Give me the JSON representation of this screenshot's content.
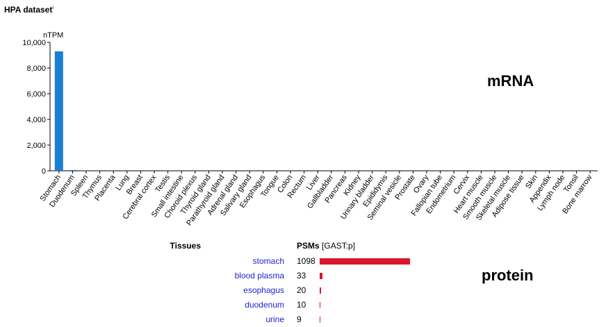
{
  "title": "HPA dataset",
  "title_superscript": "i",
  "chart_data": {
    "type": "bar",
    "ylabel": "nTPM",
    "ylim": [
      0,
      10000
    ],
    "yticks": [
      "0",
      "2,000",
      "4,000",
      "6,000",
      "8,000",
      "10,000"
    ],
    "ytick_values": [
      0,
      2000,
      4000,
      6000,
      8000,
      10000
    ],
    "categories": [
      "Stomach",
      "Duodenum",
      "Spleen",
      "Thymus",
      "Placenta",
      "Lung",
      "Breast",
      "Cerebral cortex",
      "Testis",
      "Small intestine",
      "Choroid plexus",
      "Thyroid gland",
      "Parathyroid gland",
      "Adrenal gland",
      "Salivary gland",
      "Esophagus",
      "Tongue",
      "Colon",
      "Rectum",
      "Liver",
      "Gallbladder",
      "Pancreas",
      "Kidney",
      "Urinary bladder",
      "Epididymis",
      "Seminal vesicle",
      "Prostate",
      "Ovary",
      "Fallopian tube",
      "Endometrium",
      "Cervix",
      "Heart muscle",
      "Smooth muscle",
      "Skeletal muscle",
      "Adipose tissue",
      "Skin",
      "Appendix",
      "Lymph node",
      "Tonsil",
      "Bone marrow"
    ],
    "values": [
      9300,
      60,
      0,
      0,
      0,
      0,
      0,
      0,
      0,
      0,
      0,
      0,
      0,
      0,
      0,
      0,
      0,
      0,
      0,
      0,
      0,
      0,
      0,
      0,
      0,
      0,
      0,
      0,
      0,
      0,
      0,
      0,
      0,
      0,
      0,
      0,
      0,
      0,
      0,
      0
    ],
    "bar_color": "#1a7fd4",
    "grid": false
  },
  "mrna_label": "mRNA",
  "protein_label": "protein",
  "protein": {
    "header_tissues": "Tissues",
    "header_psms": "PSMs",
    "header_psms_sub": "[GAST:p]",
    "bar_color": "#d9162a",
    "max": 1098,
    "rows": [
      {
        "tissue": "stomach",
        "psm": "1098",
        "value": 1098
      },
      {
        "tissue": "blood plasma",
        "psm": "33",
        "value": 33
      },
      {
        "tissue": "esophagus",
        "psm": "20",
        "value": 20
      },
      {
        "tissue": "duodenum",
        "psm": "10",
        "value": 10
      },
      {
        "tissue": "urine",
        "psm": "9",
        "value": 9
      }
    ]
  }
}
